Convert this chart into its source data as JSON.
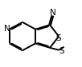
{
  "bg_color": "#ffffff",
  "line_color": "#000000",
  "lw": 1.4,
  "figsize": [
    1.02,
    0.84
  ],
  "dpi": 100,
  "xlim": [
    0.0,
    1.0
  ],
  "ylim": [
    0.0,
    1.0
  ]
}
